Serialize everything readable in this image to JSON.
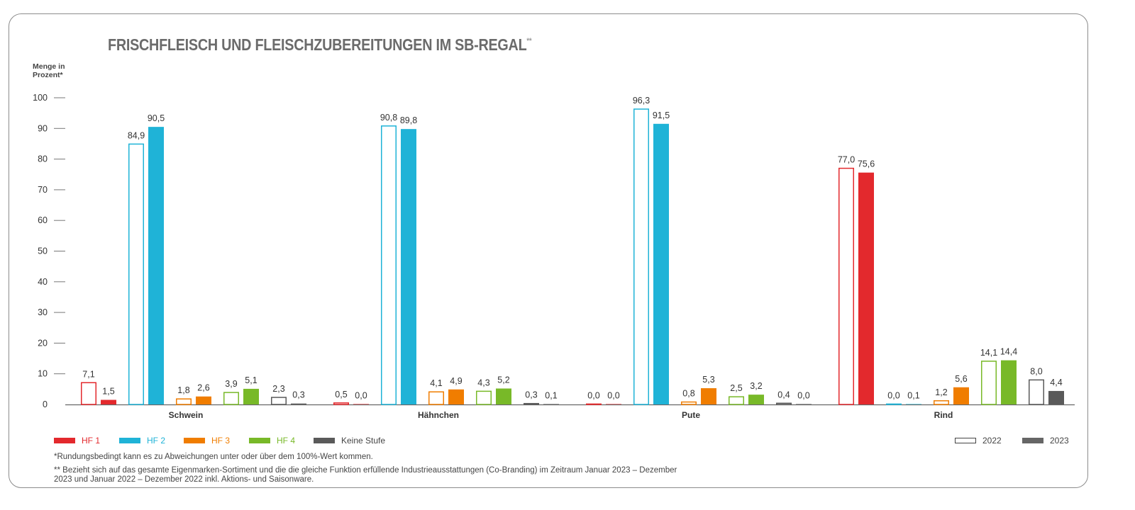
{
  "title": "FRISCHFLEISCH UND FLEISCHZUBEREITUNGEN IM SB-REGAL",
  "title_sup": "**",
  "ylabel_line1": "Menge in",
  "ylabel_line2": "Prozent*",
  "footnote1": "*Rundungsbedingt kann es zu Abweichungen unter oder über dem 100%-Wert kommen.",
  "footnote2_line1": "** Bezieht sich auf das gesamte Eigenmarken-Sortiment und die die gleiche Funktion erfüllende Industrieausstattungen (Co-Branding) im Zeitraum Januar 2023 – Dezember",
  "footnote2_line2": "2023 und Januar 2022 – Dezember 2022 inkl. Aktions- und Saisonware.",
  "legend_levels": [
    {
      "label": "HF 1",
      "color": "#e3292d"
    },
    {
      "label": "HF 2",
      "color": "#1fb3d7"
    },
    {
      "label": "HF 3",
      "color": "#f07d00"
    },
    {
      "label": "HF 4",
      "color": "#78b928"
    },
    {
      "label": "Keine Stufe",
      "color": "#5a5a5a"
    }
  ],
  "legend_years": [
    {
      "label": "2022",
      "style": "outline"
    },
    {
      "label": "2023",
      "style": "filled"
    }
  ],
  "chart_data": {
    "type": "bar",
    "ylim": [
      0,
      100
    ],
    "yticks": [
      0,
      10,
      20,
      30,
      40,
      50,
      60,
      70,
      80,
      90,
      100
    ],
    "grid": false,
    "categories": [
      "Schwein",
      "Hähnchen",
      "Pute",
      "Rind"
    ],
    "series": [
      {
        "name": "HF 1",
        "color": "#e3292d",
        "2022": [
          7.1,
          0.5,
          0.0,
          77.0
        ],
        "2023": [
          1.5,
          0.0,
          0.0,
          75.6
        ]
      },
      {
        "name": "HF 2",
        "color": "#1fb3d7",
        "2022": [
          84.9,
          90.8,
          96.3,
          0.0
        ],
        "2023": [
          90.5,
          89.8,
          91.5,
          0.1
        ]
      },
      {
        "name": "HF 3",
        "color": "#f07d00",
        "2022": [
          1.8,
          4.1,
          0.8,
          1.2
        ],
        "2023": [
          2.6,
          4.9,
          5.3,
          5.6
        ]
      },
      {
        "name": "HF 4",
        "color": "#78b928",
        "2022": [
          3.9,
          4.3,
          2.5,
          14.1
        ],
        "2023": [
          5.1,
          5.2,
          3.2,
          14.4
        ]
      },
      {
        "name": "Keine Stufe",
        "color": "#5a5a5a",
        "2022": [
          2.3,
          0.3,
          0.4,
          8.0
        ],
        "2023": [
          0.3,
          0.1,
          0.0,
          4.4
        ]
      }
    ],
    "value_labels": {
      "Schwein": [
        [
          "7,1",
          "1,5"
        ],
        [
          "84,9",
          "90,5"
        ],
        [
          "1,8",
          "2,6"
        ],
        [
          "3,9",
          "5,1"
        ],
        [
          "2,3",
          "0,3"
        ]
      ],
      "Hähnchen": [
        [
          "0,5",
          "0,0"
        ],
        [
          "90,8",
          "89,8"
        ],
        [
          "4,1",
          "4,9"
        ],
        [
          "4,3",
          "5,2"
        ],
        [
          "0,3",
          "0,1"
        ]
      ],
      "Pute": [
        [
          "0,0",
          "0,0"
        ],
        [
          "96,3",
          "91,5"
        ],
        [
          "0,8",
          "5,3"
        ],
        [
          "2,5",
          "3,2"
        ],
        [
          "0,4",
          "0,0"
        ]
      ],
      "Rind": [
        [
          "77,0",
          "75,6"
        ],
        [
          "0,0",
          "0,1"
        ],
        [
          "1,2",
          "5,6"
        ],
        [
          "14,1",
          "14,4"
        ],
        [
          "8,0",
          "4,4"
        ]
      ]
    }
  }
}
